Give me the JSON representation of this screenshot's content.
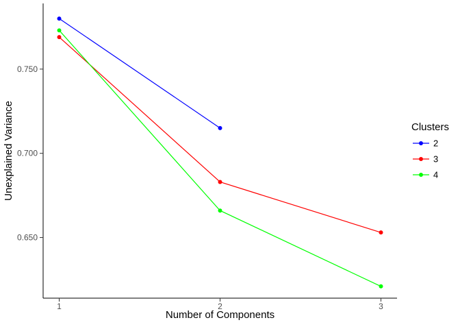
{
  "chart_data": {
    "type": "line",
    "title": "",
    "xlabel": "Number of Components",
    "ylabel": "Unexplained Variance",
    "xlim": [
      0.9,
      3.1
    ],
    "ylim": [
      0.614,
      0.789
    ],
    "grid": false,
    "background": "#FFFFFF",
    "theme": "classic",
    "xticks": [
      {
        "value": 1,
        "label": "1"
      },
      {
        "value": 2,
        "label": "2"
      },
      {
        "value": 3,
        "label": "3"
      }
    ],
    "yticks": [
      {
        "value": 0.65,
        "label": "0.650"
      },
      {
        "value": 0.7,
        "label": "0.700"
      },
      {
        "value": 0.75,
        "label": "0.750"
      }
    ],
    "series": [
      {
        "name": "2",
        "color": "#0000FF",
        "x": [
          1,
          2
        ],
        "y": [
          0.78,
          0.715
        ]
      },
      {
        "name": "3",
        "color": "#FF0000",
        "x": [
          1,
          2,
          3
        ],
        "y": [
          0.769,
          0.683,
          0.653
        ]
      },
      {
        "name": "4",
        "color": "#00FF00",
        "x": [
          1,
          2,
          3
        ],
        "y": [
          0.773,
          0.666,
          0.621
        ]
      }
    ],
    "legend": {
      "title": "Clusters",
      "position": "right",
      "items": [
        {
          "label": "2",
          "color": "#0000FF"
        },
        {
          "label": "3",
          "color": "#FF0000"
        },
        {
          "label": "4",
          "color": "#00FF00"
        }
      ]
    },
    "colors": {
      "axis_line": "#000000",
      "tick_mark": "#333333",
      "tick_label": "#4D4D4D"
    }
  }
}
